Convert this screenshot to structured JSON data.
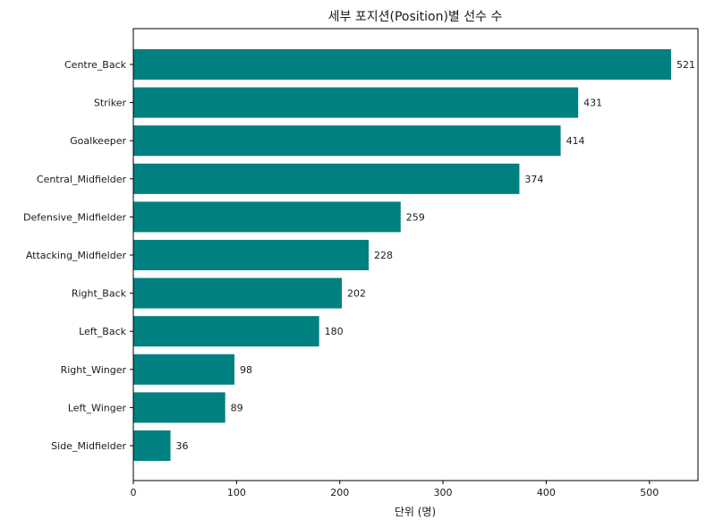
{
  "chart_data": {
    "type": "bar",
    "orientation": "horizontal",
    "title": "세부 포지션(Position)별 선수 수",
    "xlabel": "단위 (명)",
    "ylabel": "",
    "categories": [
      "Centre_Back",
      "Striker",
      "Goalkeeper",
      "Central_Midfielder",
      "Defensive_Midfielder",
      "Attacking_Midfielder",
      "Right_Back",
      "Left_Back",
      "Right_Winger",
      "Left_Winger",
      "Side_Midfielder"
    ],
    "values": [
      521,
      431,
      414,
      374,
      259,
      228,
      202,
      180,
      98,
      89,
      36
    ],
    "xlim": [
      0,
      547
    ],
    "xticks": [
      0,
      100,
      200,
      300,
      400,
      500
    ],
    "grid": false,
    "bar_color": "#008080"
  }
}
